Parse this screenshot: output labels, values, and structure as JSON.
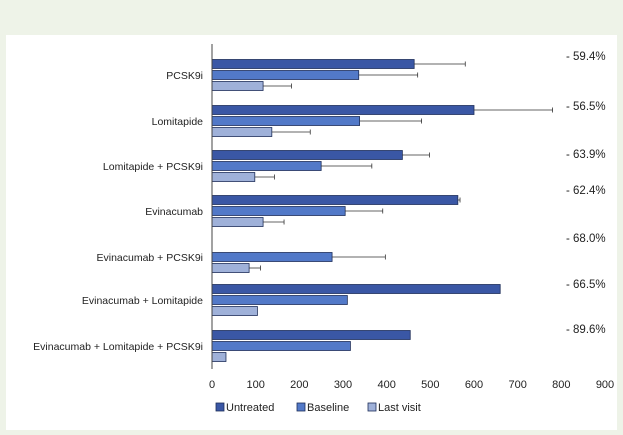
{
  "chart_data": {
    "type": "bar",
    "orientation": "horizontal",
    "categories": [
      "PCSK9i",
      "Lomitapide",
      "Lomitapide + PCSK9i",
      "Evinacumab",
      "Evinacumab + PCSK9i",
      "Evinacumab + Lomitapide",
      "Evinacumab + Lomitapide + PCSK9i"
    ],
    "series": [
      {
        "name": "Untreated",
        "color": "#3a57a5",
        "values": [
          463,
          600,
          436,
          563,
          null,
          660,
          454
        ],
        "errors": [
          117,
          180,
          62,
          5,
          null,
          null,
          null
        ]
      },
      {
        "name": "Baseline",
        "color": "#5279c8",
        "values": [
          336,
          338,
          250,
          305,
          275,
          310,
          317
        ],
        "errors": [
          135,
          142,
          116,
          86,
          122,
          null,
          null
        ]
      },
      {
        "name": "Last visit",
        "color": "#9fb1d9",
        "values": [
          117,
          137,
          98,
          117,
          85,
          104,
          32
        ],
        "errors": [
          65,
          88,
          45,
          48,
          26,
          null,
          null
        ]
      }
    ],
    "annotations": [
      "- 59.4%",
      "- 56.5%",
      "- 63.9%",
      "- 62.4%",
      "- 68.0%",
      "- 66.5%",
      "- 89.6%"
    ],
    "xticks": [
      "0",
      "100",
      "200",
      "300",
      "400",
      "500",
      "600",
      "700",
      "800",
      "900"
    ],
    "xlim": [
      0,
      900
    ],
    "legend_position": "bottom",
    "grid": false
  }
}
